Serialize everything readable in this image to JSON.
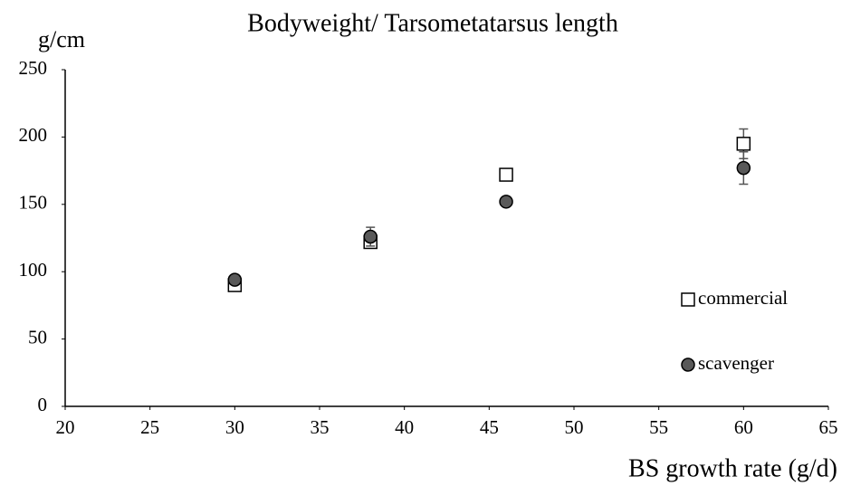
{
  "chart_data": {
    "type": "scatter",
    "title": "Bodyweight/ Tarsometatarsus length",
    "y_label": "g/cm",
    "x_label": "BS growth rate (g/d)",
    "xlim": [
      20,
      65
    ],
    "xticks": [
      20,
      25,
      30,
      35,
      40,
      45,
      50,
      55,
      60,
      65
    ],
    "ylim": [
      0,
      250
    ],
    "yticks": [
      0,
      50,
      100,
      150,
      200,
      250
    ],
    "legend": "right",
    "series": [
      {
        "name": "commercial",
        "color": "#ffffff",
        "marker": "square",
        "x": [
          30,
          38,
          46,
          60
        ],
        "values": [
          90,
          122,
          172,
          195
        ],
        "errors": [
          2,
          2,
          3,
          11
        ]
      },
      {
        "name": "scavenger",
        "color": "#595959",
        "marker": "circle",
        "x": [
          30,
          38,
          46,
          60
        ],
        "values": [
          94,
          126,
          152,
          177
        ],
        "errors": [
          3,
          7,
          2,
          12
        ]
      }
    ]
  }
}
